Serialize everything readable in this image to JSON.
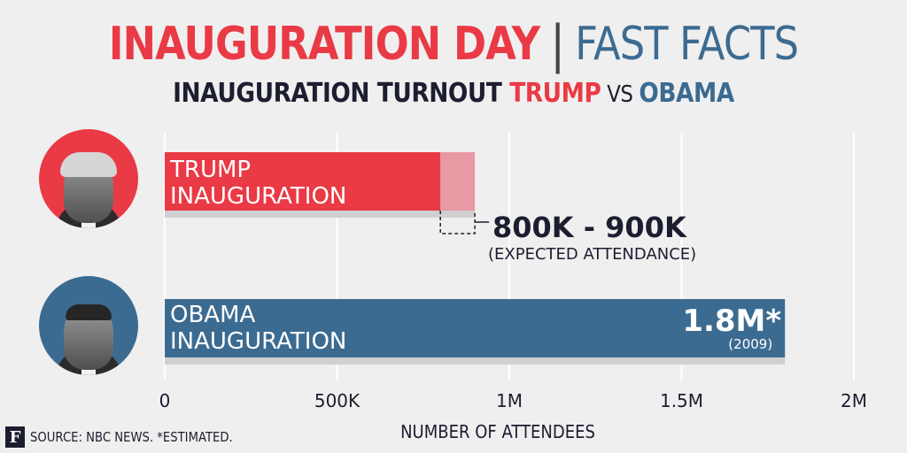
{
  "header": {
    "title_left": "INAUGURATION DAY",
    "title_right": "FAST FACTS",
    "subtitle_main": "INAUGURATION TURNOUT ",
    "subtitle_trump": "TRUMP",
    "subtitle_vs": " VS ",
    "subtitle_obama": "OBAMA"
  },
  "source": {
    "logo_letter": "F",
    "text": "SOURCE: NBC NEWS. *ESTIMATED."
  },
  "colors": {
    "trump": "#e93a45",
    "trump_light": "#e899a3",
    "obama": "#3c6b91",
    "shadow": "#d0d0d0",
    "gridline": "#ffffff",
    "text_dark": "#1c1e30"
  },
  "chart_data": {
    "type": "bar",
    "orientation": "horizontal",
    "categories": [
      "TRUMP\nINAUGURATION",
      "OBAMA\nINAUGURATION"
    ],
    "trump": {
      "low": 800000,
      "high": 900000,
      "label": "800K - 900K",
      "note": "(EXPECTED ATTENDANCE)"
    },
    "obama": {
      "value": 1800000,
      "label": "1.8M*",
      "note": "(2009)"
    },
    "xlim": [
      0,
      2000000
    ],
    "xticks": [
      0,
      500000,
      1000000,
      1500000,
      2000000
    ],
    "xtick_labels": [
      "0",
      "500K",
      "1M",
      "1.5M",
      "2M"
    ],
    "xlabel": "NUMBER OF ATTENDEES",
    "grid": true
  }
}
